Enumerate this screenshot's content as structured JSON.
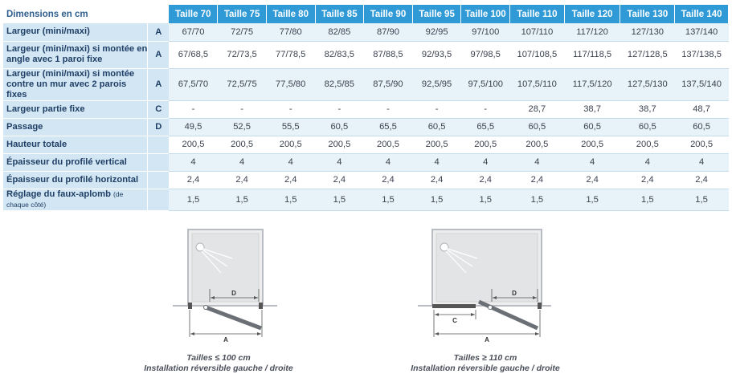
{
  "table": {
    "corner_label": "Dimensions en cm",
    "sizes": [
      "Taille 70",
      "Taille 75",
      "Taille 80",
      "Taille 85",
      "Taille 90",
      "Taille 95",
      "Taille 100",
      "Taille 110",
      "Taille 120",
      "Taille 130",
      "Taille 140"
    ],
    "rows": [
      {
        "label": "Largeur (mini/maxi)",
        "label_small": "",
        "letter": "A",
        "values": [
          "67/70",
          "72/75",
          "77/80",
          "82/85",
          "87/90",
          "92/95",
          "97/100",
          "107/110",
          "117/120",
          "127/130",
          "137/140"
        ]
      },
      {
        "label": "Largeur (mini/maxi) si montée en angle avec 1 paroi fixe",
        "label_small": "",
        "letter": "A",
        "values": [
          "67/68,5",
          "72/73,5",
          "77/78,5",
          "82/83,5",
          "87/88,5",
          "92/93,5",
          "97/98,5",
          "107/108,5",
          "117/118,5",
          "127/128,5",
          "137/138,5"
        ]
      },
      {
        "label": "Largeur (mini/maxi) si montée contre un mur avec 2 parois fixes",
        "label_small": "",
        "letter": "A",
        "values": [
          "67,5/70",
          "72,5/75",
          "77,5/80",
          "82,5/85",
          "87,5/90",
          "92,5/95",
          "97,5/100",
          "107,5/110",
          "117,5/120",
          "127,5/130",
          "137,5/140"
        ]
      },
      {
        "label": "Largeur partie fixe",
        "label_small": "",
        "letter": "C",
        "values": [
          "-",
          "-",
          "-",
          "-",
          "-",
          "-",
          "-",
          "28,7",
          "38,7",
          "38,7",
          "48,7"
        ]
      },
      {
        "label": "Passage",
        "label_small": "",
        "letter": "D",
        "values": [
          "49,5",
          "52,5",
          "55,5",
          "60,5",
          "65,5",
          "60,5",
          "65,5",
          "60,5",
          "60,5",
          "60,5",
          "60,5"
        ]
      },
      {
        "label": "Hauteur totale",
        "label_small": "",
        "letter": "",
        "values": [
          "200,5",
          "200,5",
          "200,5",
          "200,5",
          "200,5",
          "200,5",
          "200,5",
          "200,5",
          "200,5",
          "200,5",
          "200,5"
        ]
      },
      {
        "label": "Épaisseur du profilé vertical",
        "label_small": "",
        "letter": "",
        "values": [
          "4",
          "4",
          "4",
          "4",
          "4",
          "4",
          "4",
          "4",
          "4",
          "4",
          "4"
        ]
      },
      {
        "label": "Épaisseur du profilé horizontal",
        "label_small": "",
        "letter": "",
        "values": [
          "2,4",
          "2,4",
          "2,4",
          "2,4",
          "2,4",
          "2,4",
          "2,4",
          "2,4",
          "2,4",
          "2,4",
          "2,4"
        ]
      },
      {
        "label": "Réglage du faux-aplomb",
        "label_small": "(de chaque côté)",
        "letter": "",
        "values": [
          "1,5",
          "1,5",
          "1,5",
          "1,5",
          "1,5",
          "1,5",
          "1,5",
          "1,5",
          "1,5",
          "1,5",
          "1,5"
        ]
      }
    ]
  },
  "diagrams": [
    {
      "labels": {
        "d": "D",
        "a": "A"
      },
      "caption_line1": "Tailles ≤ 100 cm",
      "caption_line2": "Installation réversible gauche / droite"
    },
    {
      "labels": {
        "d": "D",
        "a": "A",
        "c": "C"
      },
      "caption_line1": "Tailles ≥ 110 cm",
      "caption_line2": "Installation réversible gauche / droite"
    }
  ],
  "colors": {
    "header": "#2f9ad6",
    "label_bg": "#d3e6f3",
    "row_shade": "#e8f2f9",
    "profile": "#6b6f76"
  }
}
